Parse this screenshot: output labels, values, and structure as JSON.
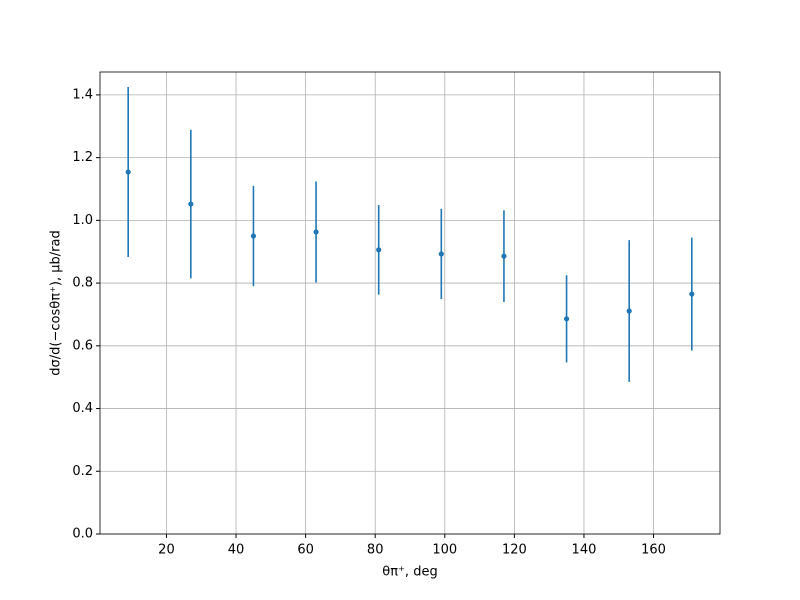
{
  "chart_data": {
    "type": "errorbar",
    "xlabel": "θπ⁺, deg",
    "ylabel": "dσ/d(−cosθπ⁺), μb/rad",
    "x": [
      9,
      27,
      45,
      63,
      81,
      99,
      117,
      135,
      153,
      171
    ],
    "series": [
      {
        "color": "#1f77b4",
        "values": [
          1.154,
          1.052,
          0.95,
          0.963,
          0.906,
          0.893,
          0.886,
          0.686,
          0.711,
          0.765
        ],
        "errors": [
          0.271,
          0.237,
          0.16,
          0.161,
          0.143,
          0.144,
          0.146,
          0.139,
          0.226,
          0.18
        ]
      }
    ],
    "xlim": [
      0.9,
      179.1
    ],
    "ylim": [
      0,
      1.473
    ],
    "xticks": [
      20,
      40,
      60,
      80,
      100,
      120,
      140,
      160
    ],
    "yticks": [
      {
        "value": 0,
        "label": "0.0"
      },
      0.2,
      0.4,
      0.6,
      0.8,
      {
        "value": 1,
        "label": "1.0"
      },
      1.2,
      1.4
    ],
    "grid": true
  }
}
